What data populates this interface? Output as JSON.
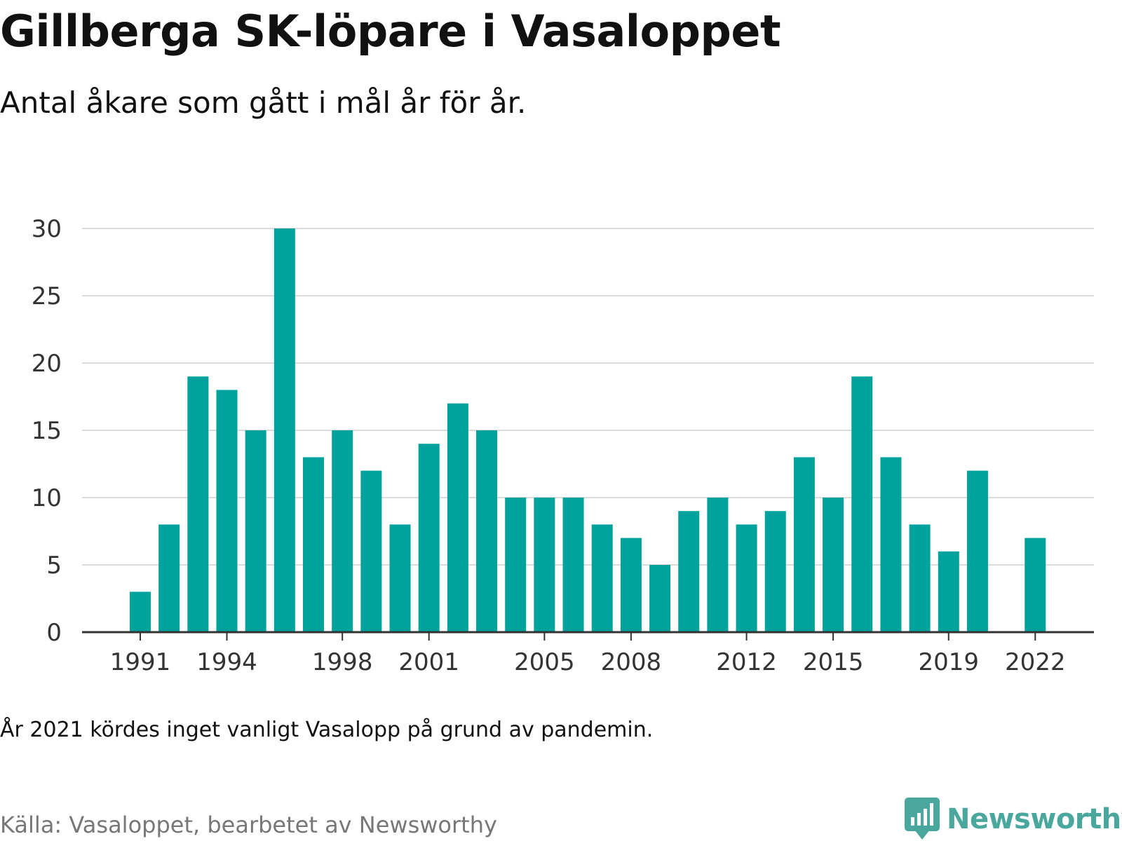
{
  "title": "Gillberga SK-löpare i Vasaloppet",
  "subtitle": "Antal åkare som gått i mål år för år.",
  "note": "År 2021 kördes inget vanligt Vasalopp på grund av pandemin.",
  "source": "Källa: Vasaloppet, bearbetet av Newsworthy",
  "logo": {
    "name": "Newsworthy",
    "icon": "newsworthy-logo-icon"
  },
  "colors": {
    "bar": "#00a39b",
    "grid": "#dcdcdc",
    "axis": "#333333",
    "logo": "#4aa79e"
  },
  "chart_data": {
    "type": "bar",
    "categories": [
      1991,
      1992,
      1993,
      1994,
      1995,
      1996,
      1997,
      1998,
      1999,
      2000,
      2001,
      2002,
      2003,
      2004,
      2005,
      2006,
      2007,
      2008,
      2009,
      2010,
      2011,
      2012,
      2013,
      2014,
      2015,
      2016,
      2017,
      2018,
      2019,
      2020,
      2021,
      2022
    ],
    "values": [
      3,
      8,
      19,
      18,
      15,
      30,
      13,
      15,
      12,
      8,
      14,
      17,
      15,
      10,
      10,
      10,
      8,
      7,
      5,
      9,
      10,
      8,
      9,
      13,
      10,
      19,
      13,
      8,
      6,
      12,
      null,
      7
    ],
    "x_tick_labels": [
      "1991",
      "1994",
      "1998",
      "2001",
      "2005",
      "2008",
      "2012",
      "2015",
      "2019",
      "2022"
    ],
    "y_ticks": [
      0,
      5,
      10,
      15,
      20,
      25,
      30
    ],
    "ylim": [
      0,
      30
    ],
    "grid": true,
    "legend": "none"
  }
}
